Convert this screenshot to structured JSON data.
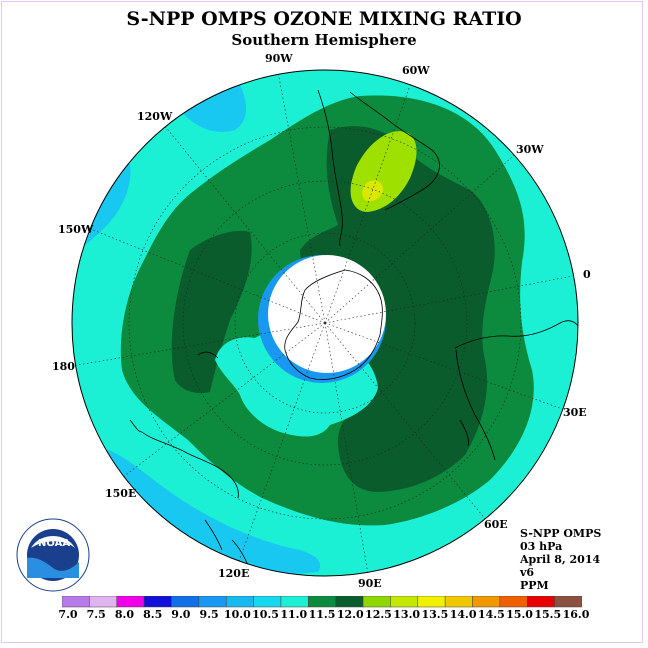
{
  "header": {
    "title": "S-NPP OMPS OZONE MIXING RATIO",
    "subtitle": "Southern Hemisphere"
  },
  "map": {
    "projection": "south-polar-stereographic",
    "longitude_labels": [
      "90W",
      "60W",
      "30W",
      "0",
      "30E",
      "60E",
      "90E",
      "120E",
      "150E",
      "180",
      "150W",
      "120W"
    ],
    "colors": {
      "ocean_field": "#1cf0d4",
      "mid_field": "#0c8a3e",
      "high_field": "#0a5c2c",
      "peak_field": "#9ee000",
      "peak_core": "#d8e800",
      "low_field": "#18c8f0",
      "polar_ring": "#1898f0",
      "no_data": "#ffffff"
    }
  },
  "info": {
    "instrument": "S-NPP OMPS",
    "level": "03 hPa",
    "date": "April 8, 2014",
    "version": "v6",
    "units": "PPM"
  },
  "colorbar": {
    "labels": [
      "7.0",
      "7.5",
      "8.0",
      "8.5",
      "9.0",
      "9.5",
      "10.0",
      "10.5",
      "11.0",
      "11.5",
      "12.0",
      "12.5",
      "13.0",
      "13.5",
      "14.0",
      "14.5",
      "15.0",
      "15.5",
      "16.0"
    ],
    "colors": [
      "#b87ae8",
      "#e0b4f0",
      "#f000e8",
      "#1010d8",
      "#1070e8",
      "#1898f0",
      "#18b8f0",
      "#18d8f0",
      "#1cf0d4",
      "#0c8a3e",
      "#0a5c2c",
      "#8ed800",
      "#c4e800",
      "#f0f000",
      "#f0c800",
      "#f09800",
      "#f06000",
      "#e80000",
      "#8c5040"
    ]
  },
  "logo": {
    "text": "NOAA"
  }
}
